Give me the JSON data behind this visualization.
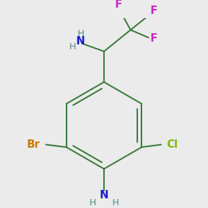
{
  "bg_color": "#ebebeb",
  "bond_color": "#3a7a3a",
  "bond_width": 1.5,
  "atom_colors": {
    "C": "#3a7a3a",
    "N": "#1a1acc",
    "H": "#4a8a8a",
    "F": "#cc22cc",
    "Br": "#cc7700",
    "Cl": "#77bb00"
  },
  "font_size_large": 11,
  "font_size_medium": 9.5
}
